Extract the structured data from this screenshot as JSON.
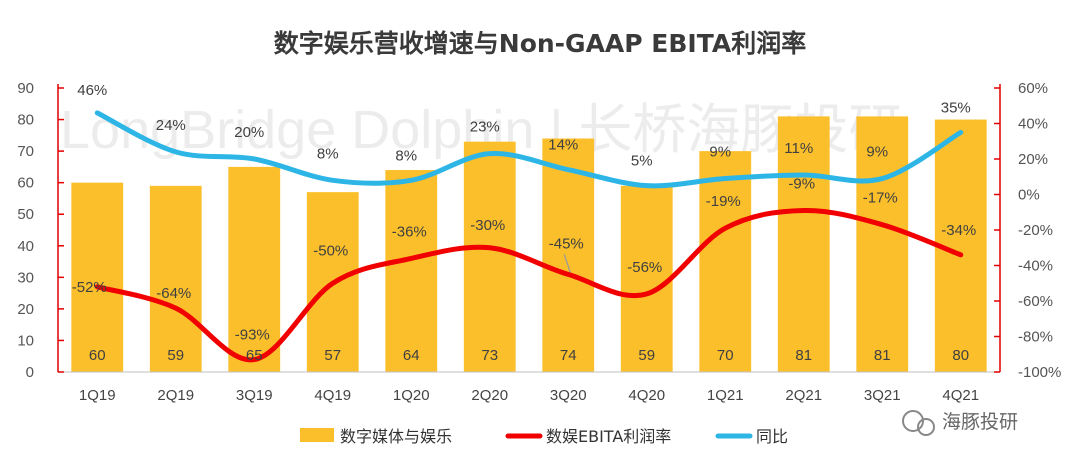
{
  "watermark": "LongBridge Dolphin | 长桥海豚投研",
  "brand": "海豚投研",
  "colors": {
    "bar": "#FBBF2B",
    "margin_line": "#F00000",
    "yoy_line": "#2DB5E6",
    "axis": "#E00000"
  },
  "chart_data": {
    "type": "bar",
    "title": "数字娱乐营收增速与Non-GAAP EBITA利润率",
    "categories": [
      "1Q19",
      "2Q19",
      "3Q19",
      "4Q19",
      "1Q20",
      "2Q20",
      "3Q20",
      "4Q20",
      "1Q21",
      "2Q21",
      "3Q21",
      "4Q21"
    ],
    "ylim": [
      0,
      90
    ],
    "y_ticks": [
      0,
      10,
      20,
      30,
      40,
      50,
      60,
      70,
      80,
      90
    ],
    "y2lim": [
      -100,
      60
    ],
    "y2_ticks": [
      -100,
      -80,
      -60,
      -40,
      -20,
      0,
      20,
      40,
      60
    ],
    "series": [
      {
        "name": "数字媒体与娱乐",
        "kind": "bar",
        "axis": "left",
        "values": [
          60,
          59,
          65,
          57,
          64,
          73,
          74,
          59,
          70,
          81,
          81,
          80
        ]
      },
      {
        "name": "数娱EBITA利润率",
        "kind": "line",
        "axis": "right",
        "values": [
          -52,
          -64,
          -93,
          -50,
          -36,
          -30,
          -45,
          -56,
          -19,
          -9,
          -17,
          -34
        ]
      },
      {
        "name": "同比",
        "kind": "line",
        "axis": "right",
        "values": [
          46,
          24,
          20,
          8,
          8,
          23,
          14,
          5,
          9,
          11,
          9,
          35
        ]
      }
    ],
    "legend_position": "bottom"
  }
}
